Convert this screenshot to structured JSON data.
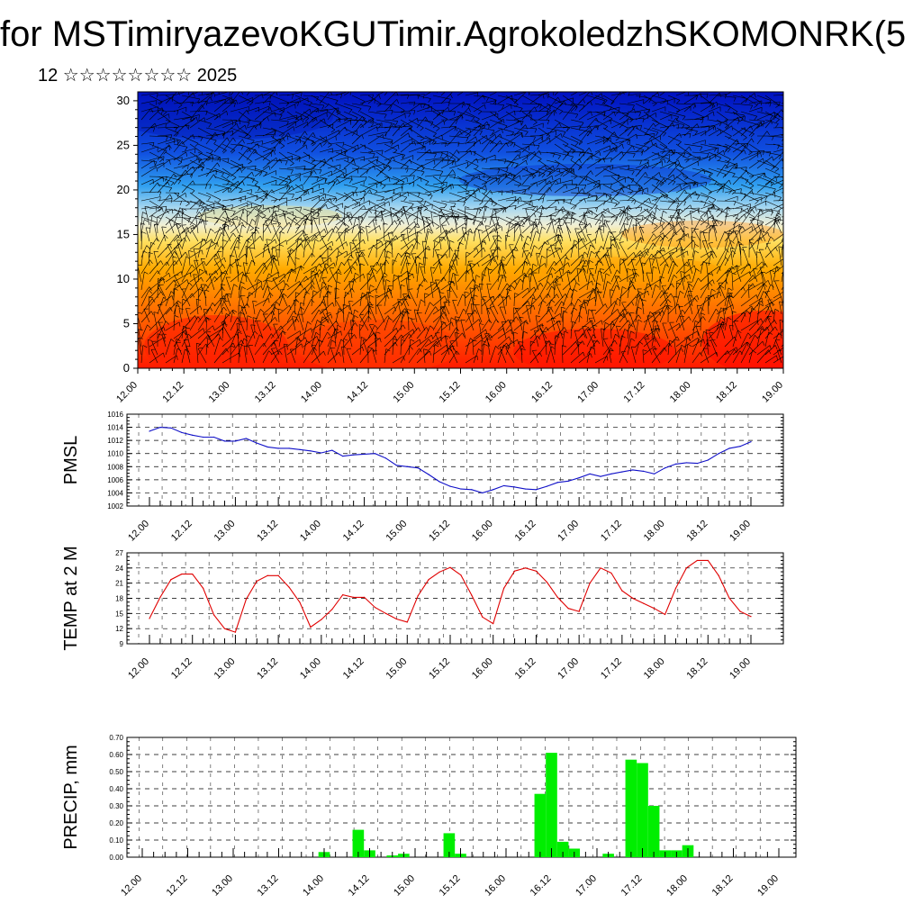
{
  "header": {
    "title": "for MSTimiryazevoKGUTimir.AgrokoledzhSKOMONRK(5",
    "subtitle": "12 ☆☆☆☆☆☆☆☆ 2025"
  },
  "time_labels": [
    "12.00",
    "12.12",
    "13.00",
    "13.12",
    "14.00",
    "14.12",
    "15.00",
    "15.12",
    "16.00",
    "16.12",
    "17.00",
    "17.12",
    "18.00",
    "18.12",
    "19.00"
  ],
  "colors": {
    "pmsl": "#1010c8",
    "temp": "#e00000",
    "precip": "#00ee00"
  },
  "chart_data": [
    {
      "type": "heatmap",
      "title": "",
      "ylabel": "",
      "ylim": [
        0,
        31
      ],
      "yticks": [
        0,
        5,
        10,
        15,
        20,
        25,
        30
      ],
      "x": [
        "12.00",
        "12.12",
        "13.00",
        "13.12",
        "14.00",
        "14.12",
        "15.00",
        "15.12",
        "16.00",
        "16.12",
        "17.00",
        "17.12",
        "18.00",
        "18.12",
        "19.00"
      ],
      "colormap": "blue (top, cold) to red (bottom, warm)",
      "overlay": "wind barbs"
    },
    {
      "type": "line",
      "ylabel": "PMSL",
      "ylim": [
        1002,
        1016
      ],
      "yticks": [
        1002,
        1004,
        1006,
        1008,
        1010,
        1012,
        1014,
        1016
      ],
      "x_hours": [
        0,
        3,
        6,
        9,
        12,
        15,
        18,
        21,
        24,
        27,
        30,
        33,
        36,
        39,
        42,
        45,
        48,
        51,
        54,
        57,
        60,
        63,
        66,
        69,
        72,
        75,
        78,
        81,
        84,
        87,
        90,
        93,
        96,
        99,
        102,
        105,
        108,
        111,
        114,
        117,
        120,
        123,
        126,
        129,
        132,
        135,
        138,
        141,
        144,
        147,
        150,
        153,
        156,
        159,
        162,
        165,
        168
      ],
      "values": [
        1013.4,
        1014.0,
        1013.9,
        1013.2,
        1012.8,
        1012.5,
        1012.5,
        1011.9,
        1011.9,
        1012.3,
        1011.6,
        1011.0,
        1010.8,
        1010.8,
        1010.6,
        1010.4,
        1010.1,
        1010.5,
        1009.6,
        1009.8,
        1009.9,
        1010.0,
        1009.3,
        1008.2,
        1008.0,
        1007.8,
        1006.8,
        1005.7,
        1005.0,
        1004.6,
        1004.5,
        1004.0,
        1004.5,
        1005.1,
        1004.9,
        1004.6,
        1004.5,
        1005.0,
        1005.6,
        1005.8,
        1006.3,
        1006.9,
        1006.5,
        1006.9,
        1007.2,
        1007.5,
        1007.3,
        1006.9,
        1007.8,
        1008.4,
        1008.6,
        1008.5,
        1009.0,
        1010.0,
        1010.8,
        1011.1,
        1011.8
      ],
      "series": [
        {
          "name": "PMSL",
          "color": "#1010c8"
        }
      ]
    },
    {
      "type": "line",
      "ylabel": "TEMP at 2 M",
      "ylim": [
        9,
        27
      ],
      "yticks": [
        9,
        12,
        15,
        18,
        21,
        24,
        27
      ],
      "x_hours": [
        0,
        3,
        6,
        9,
        12,
        15,
        18,
        21,
        24,
        27,
        30,
        33,
        36,
        39,
        42,
        45,
        48,
        51,
        54,
        57,
        60,
        63,
        66,
        69,
        72,
        75,
        78,
        81,
        84,
        87,
        90,
        93,
        96,
        99,
        102,
        105,
        108,
        111,
        114,
        117,
        120,
        123,
        126,
        129,
        132,
        135,
        138,
        141,
        144,
        147,
        150,
        153,
        156,
        159,
        162,
        165,
        168
      ],
      "values": [
        14.0,
        18.2,
        21.7,
        22.8,
        22.8,
        20.0,
        14.7,
        12.0,
        11.3,
        17.8,
        21.4,
        22.5,
        22.5,
        20.2,
        17.2,
        12.3,
        13.8,
        15.8,
        18.7,
        18.2,
        18.2,
        16.2,
        15.0,
        13.9,
        13.3,
        18.5,
        21.7,
        23.2,
        24.1,
        22.6,
        18.6,
        14.3,
        13.0,
        20.0,
        23.4,
        24.0,
        23.4,
        21.2,
        18.2,
        16.0,
        15.4,
        21.0,
        24.0,
        23.0,
        19.5,
        18.0,
        17.0,
        16.0,
        14.8,
        20.0,
        24.0,
        25.5,
        25.5,
        22.5,
        18.0,
        15.4,
        14.4
      ],
      "series": [
        {
          "name": "TEMP at 2 M",
          "color": "#e00000"
        }
      ]
    },
    {
      "type": "bar",
      "ylabel": "PRECIP, mm",
      "ylim": [
        0,
        0.7
      ],
      "yticks": [
        "0.00",
        "0.10",
        "0.20",
        "0.30",
        "0.40",
        "0.50",
        "0.60",
        "0.70"
      ],
      "x_hours": [
        48,
        57,
        60,
        66,
        69,
        81,
        84,
        105,
        108,
        111,
        114,
        123,
        129,
        132,
        135,
        138,
        141,
        144
      ],
      "values": [
        0.03,
        0.16,
        0.04,
        0.01,
        0.02,
        0.14,
        0.02,
        0.37,
        0.61,
        0.09,
        0.05,
        0.02,
        0.57,
        0.55,
        0.3,
        0.04,
        0.04,
        0.07
      ],
      "series": [
        {
          "name": "PRECIP, mm",
          "color": "#00ee00"
        }
      ]
    }
  ]
}
